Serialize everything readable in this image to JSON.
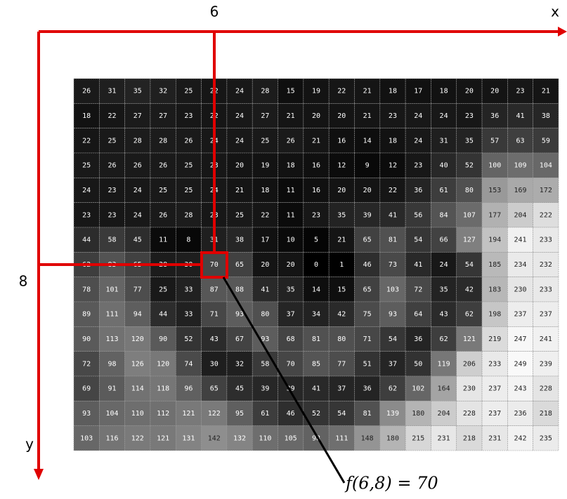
{
  "labels": {
    "col_index": "6",
    "x_axis": "x",
    "row_index": "8",
    "y_axis": "y",
    "formula": "f(6,8) = 70"
  },
  "grid": {
    "rows": [
      [
        26,
        31,
        35,
        32,
        25,
        22,
        24,
        28,
        15,
        19,
        22,
        21,
        18,
        17,
        18,
        20,
        20,
        23,
        21
      ],
      [
        18,
        22,
        27,
        27,
        23,
        22,
        24,
        27,
        21,
        20,
        20,
        21,
        23,
        24,
        24,
        23,
        36,
        41,
        38
      ],
      [
        22,
        25,
        28,
        28,
        26,
        24,
        24,
        25,
        26,
        21,
        16,
        14,
        18,
        24,
        31,
        35,
        57,
        63,
        59
      ],
      [
        25,
        26,
        26,
        26,
        25,
        23,
        20,
        19,
        18,
        16,
        12,
        9,
        12,
        23,
        40,
        52,
        100,
        109,
        104
      ],
      [
        24,
        23,
        24,
        25,
        25,
        24,
        21,
        18,
        11,
        16,
        20,
        20,
        22,
        36,
        61,
        80,
        153,
        169,
        172
      ],
      [
        23,
        23,
        24,
        26,
        28,
        23,
        25,
        22,
        11,
        23,
        35,
        39,
        41,
        56,
        84,
        107,
        177,
        204,
        222
      ],
      [
        44,
        58,
        45,
        11,
        8,
        31,
        38,
        17,
        10,
        5,
        21,
        65,
        81,
        54,
        66,
        127,
        194,
        241,
        233
      ],
      [
        62,
        83,
        65,
        28,
        30,
        70,
        65,
        20,
        20,
        0,
        1,
        46,
        73,
        41,
        24,
        54,
        185,
        234,
        232
      ],
      [
        78,
        101,
        77,
        25,
        33,
        87,
        88,
        41,
        35,
        14,
        15,
        65,
        103,
        72,
        35,
        42,
        183,
        230,
        233
      ],
      [
        89,
        111,
        94,
        44,
        33,
        71,
        93,
        80,
        37,
        34,
        42,
        75,
        93,
        64,
        43,
        62,
        198,
        237,
        237
      ],
      [
        90,
        113,
        120,
        90,
        52,
        43,
        67,
        93,
        68,
        81,
        80,
        71,
        54,
        36,
        62,
        121,
        219,
        247,
        241
      ],
      [
        72,
        98,
        126,
        120,
        74,
        30,
        32,
        58,
        70,
        85,
        77,
        51,
        37,
        50,
        119,
        206,
        233,
        249,
        239
      ],
      [
        69,
        91,
        114,
        118,
        96,
        65,
        45,
        39,
        39,
        41,
        37,
        36,
        62,
        102,
        164,
        230,
        237,
        243,
        228
      ],
      [
        93,
        104,
        110,
        112,
        121,
        122,
        95,
        61,
        46,
        52,
        54,
        81,
        139,
        180,
        204,
        228,
        237,
        236,
        218
      ],
      [
        103,
        116,
        122,
        121,
        131,
        142,
        132,
        110,
        105,
        98,
        111,
        148,
        180,
        215,
        231,
        218,
        231,
        242,
        235
      ]
    ]
  }
}
